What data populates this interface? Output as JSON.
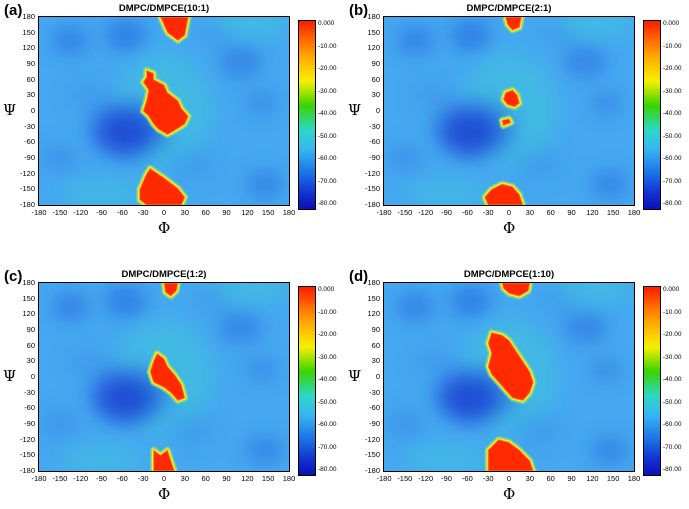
{
  "chart_data": [
    {
      "type": "heatmap",
      "panel_label": "(a)",
      "title": "DMPC/DMPCE(10:1)",
      "xlabel": "Φ",
      "ylabel": "Ψ",
      "xlim": [
        -180,
        180
      ],
      "ylim": [
        -180,
        180
      ],
      "x_ticks": [
        "-180",
        "-150",
        "-120",
        "-90",
        "-60",
        "-30",
        "0",
        "30",
        "60",
        "90",
        "120",
        "150",
        "180"
      ],
      "y_ticks": [
        "180",
        "150",
        "120",
        "90",
        "60",
        "30",
        "0",
        "-30",
        "-60",
        "-90",
        "-120",
        "-150",
        "-180"
      ],
      "colorbar": {
        "min": -80,
        "max": 0,
        "labels": [
          "0.000",
          "-10.00",
          "-20.00",
          "-30.00",
          "-40.00",
          "-50.00",
          "-60.00",
          "-70.00",
          "-80.00"
        ]
      },
      "red_regions": [
        [
          [
            -5,
            180
          ],
          [
            35,
            180
          ],
          [
            30,
            145
          ],
          [
            20,
            135
          ],
          [
            5,
            150
          ]
        ],
        [
          [
            -25,
            78
          ],
          [
            -15,
            72
          ],
          [
            -15,
            60
          ],
          [
            0,
            50
          ],
          [
            5,
            35
          ],
          [
            20,
            20
          ],
          [
            25,
            5
          ],
          [
            35,
            -10
          ],
          [
            30,
            -25
          ],
          [
            18,
            -35
          ],
          [
            5,
            -45
          ],
          [
            -8,
            -35
          ],
          [
            -15,
            -25
          ],
          [
            -22,
            -10
          ],
          [
            -30,
            0
          ],
          [
            -25,
            20
          ],
          [
            -22,
            40
          ],
          [
            -30,
            55
          ],
          [
            -25,
            65
          ]
        ],
        [
          [
            -35,
            -150
          ],
          [
            -25,
            -120
          ],
          [
            -20,
            -110
          ],
          [
            0,
            -128
          ],
          [
            20,
            -148
          ],
          [
            30,
            -165
          ],
          [
            25,
            -180
          ],
          [
            -25,
            -180
          ],
          [
            -35,
            -170
          ]
        ]
      ]
    },
    {
      "type": "heatmap",
      "panel_label": "(b)",
      "title": "DMPC/DMPCE(2:1)",
      "xlabel": "Φ",
      "ylabel": "Ψ",
      "xlim": [
        -180,
        180
      ],
      "ylim": [
        -180,
        180
      ],
      "x_ticks": [
        "-180",
        "-150",
        "-120",
        "-90",
        "-60",
        "-30",
        "0",
        "30",
        "60",
        "90",
        "120",
        "150",
        "180"
      ],
      "y_ticks": [
        "180",
        "150",
        "120",
        "90",
        "60",
        "30",
        "0",
        "-30",
        "-60",
        "-90",
        "-120",
        "-150",
        "-180"
      ],
      "colorbar": {
        "min": -80,
        "max": 0,
        "labels": [
          "0.000",
          "-10.00",
          "-20.00",
          "-30.00",
          "-40.00",
          "-50.00",
          "-60.00",
          "-70.00",
          "-80.00"
        ]
      },
      "red_regions": [
        [
          [
            -5,
            180
          ],
          [
            18,
            180
          ],
          [
            15,
            160
          ],
          [
            5,
            155
          ],
          [
            -2,
            165
          ]
        ],
        [
          [
            -5,
            35
          ],
          [
            5,
            40
          ],
          [
            12,
            30
          ],
          [
            15,
            15
          ],
          [
            8,
            8
          ],
          [
            -2,
            12
          ],
          [
            -8,
            22
          ]
        ],
        [
          [
            -10,
            -18
          ],
          [
            0,
            -15
          ],
          [
            3,
            -22
          ],
          [
            -8,
            -28
          ]
        ],
        [
          [
            -35,
            -165
          ],
          [
            -25,
            -150
          ],
          [
            -10,
            -140
          ],
          [
            5,
            -145
          ],
          [
            15,
            -160
          ],
          [
            20,
            -180
          ],
          [
            -30,
            -180
          ]
        ]
      ]
    },
    {
      "type": "heatmap",
      "panel_label": "(c)",
      "title": "DMPC/DMPCE(1:2)",
      "xlabel": "Φ",
      "ylabel": "Ψ",
      "xlim": [
        -180,
        180
      ],
      "ylim": [
        -180,
        180
      ],
      "x_ticks": [
        "-180",
        "-150",
        "-120",
        "-90",
        "-60",
        "-30",
        "0",
        "30",
        "60",
        "90",
        "120",
        "150",
        "180"
      ],
      "y_ticks": [
        "180",
        "150",
        "120",
        "90",
        "60",
        "30",
        "0",
        "-30",
        "-60",
        "-90",
        "-120",
        "-150",
        "-180"
      ],
      "colorbar": {
        "min": -80,
        "max": 0,
        "labels": [
          "0.000",
          "-10.00",
          "-20.00",
          "-30.00",
          "-40.00",
          "-50.00",
          "-60.00",
          "-70.00",
          "-80.00"
        ]
      },
      "red_regions": [
        [
          [
            0,
            180
          ],
          [
            20,
            180
          ],
          [
            18,
            165
          ],
          [
            10,
            155
          ],
          [
            2,
            162
          ]
        ],
        [
          [
            -10,
            45
          ],
          [
            0,
            35
          ],
          [
            5,
            20
          ],
          [
            15,
            5
          ],
          [
            25,
            -15
          ],
          [
            30,
            -40
          ],
          [
            20,
            -45
          ],
          [
            10,
            -30
          ],
          [
            0,
            -20
          ],
          [
            -15,
            -10
          ],
          [
            -20,
            10
          ],
          [
            -15,
            30
          ]
        ],
        [
          [
            -15,
            -140
          ],
          [
            -5,
            -150
          ],
          [
            5,
            -140
          ],
          [
            10,
            -160
          ],
          [
            15,
            -180
          ],
          [
            -15,
            -180
          ]
        ]
      ]
    },
    {
      "type": "heatmap",
      "panel_label": "(d)",
      "title": "DMPC/DMPCE(1:10)",
      "xlabel": "Φ",
      "ylabel": "Ψ",
      "xlim": [
        -180,
        180
      ],
      "ylim": [
        -180,
        180
      ],
      "x_ticks": [
        "-180",
        "-150",
        "-120",
        "-90",
        "-60",
        "-30",
        "0",
        "30",
        "60",
        "90",
        "120",
        "150",
        "180"
      ],
      "y_ticks": [
        "180",
        "150",
        "120",
        "90",
        "60",
        "30",
        "0",
        "-30",
        "-60",
        "-90",
        "-120",
        "-150",
        "-180"
      ],
      "colorbar": {
        "min": -80,
        "max": 0,
        "labels": [
          "0.000",
          "-10.00",
          "-20.00",
          "-30.00",
          "-40.00",
          "-50.00",
          "-60.00",
          "-70.00",
          "-80.00"
        ]
      },
      "red_regions": [
        [
          [
            -10,
            180
          ],
          [
            30,
            180
          ],
          [
            28,
            165
          ],
          [
            15,
            155
          ],
          [
            0,
            160
          ],
          [
            -8,
            170
          ]
        ],
        [
          [
            -25,
            85
          ],
          [
            -10,
            80
          ],
          [
            0,
            70
          ],
          [
            10,
            50
          ],
          [
            20,
            30
          ],
          [
            30,
            10
          ],
          [
            35,
            -10
          ],
          [
            30,
            -30
          ],
          [
            20,
            -45
          ],
          [
            5,
            -40
          ],
          [
            -5,
            -25
          ],
          [
            -15,
            -10
          ],
          [
            -25,
            5
          ],
          [
            -30,
            20
          ],
          [
            -25,
            45
          ],
          [
            -30,
            65
          ]
        ],
        [
          [
            -30,
            -140
          ],
          [
            -15,
            -120
          ],
          [
            0,
            -125
          ],
          [
            15,
            -140
          ],
          [
            30,
            -160
          ],
          [
            35,
            -180
          ],
          [
            -30,
            -180
          ]
        ]
      ]
    }
  ]
}
